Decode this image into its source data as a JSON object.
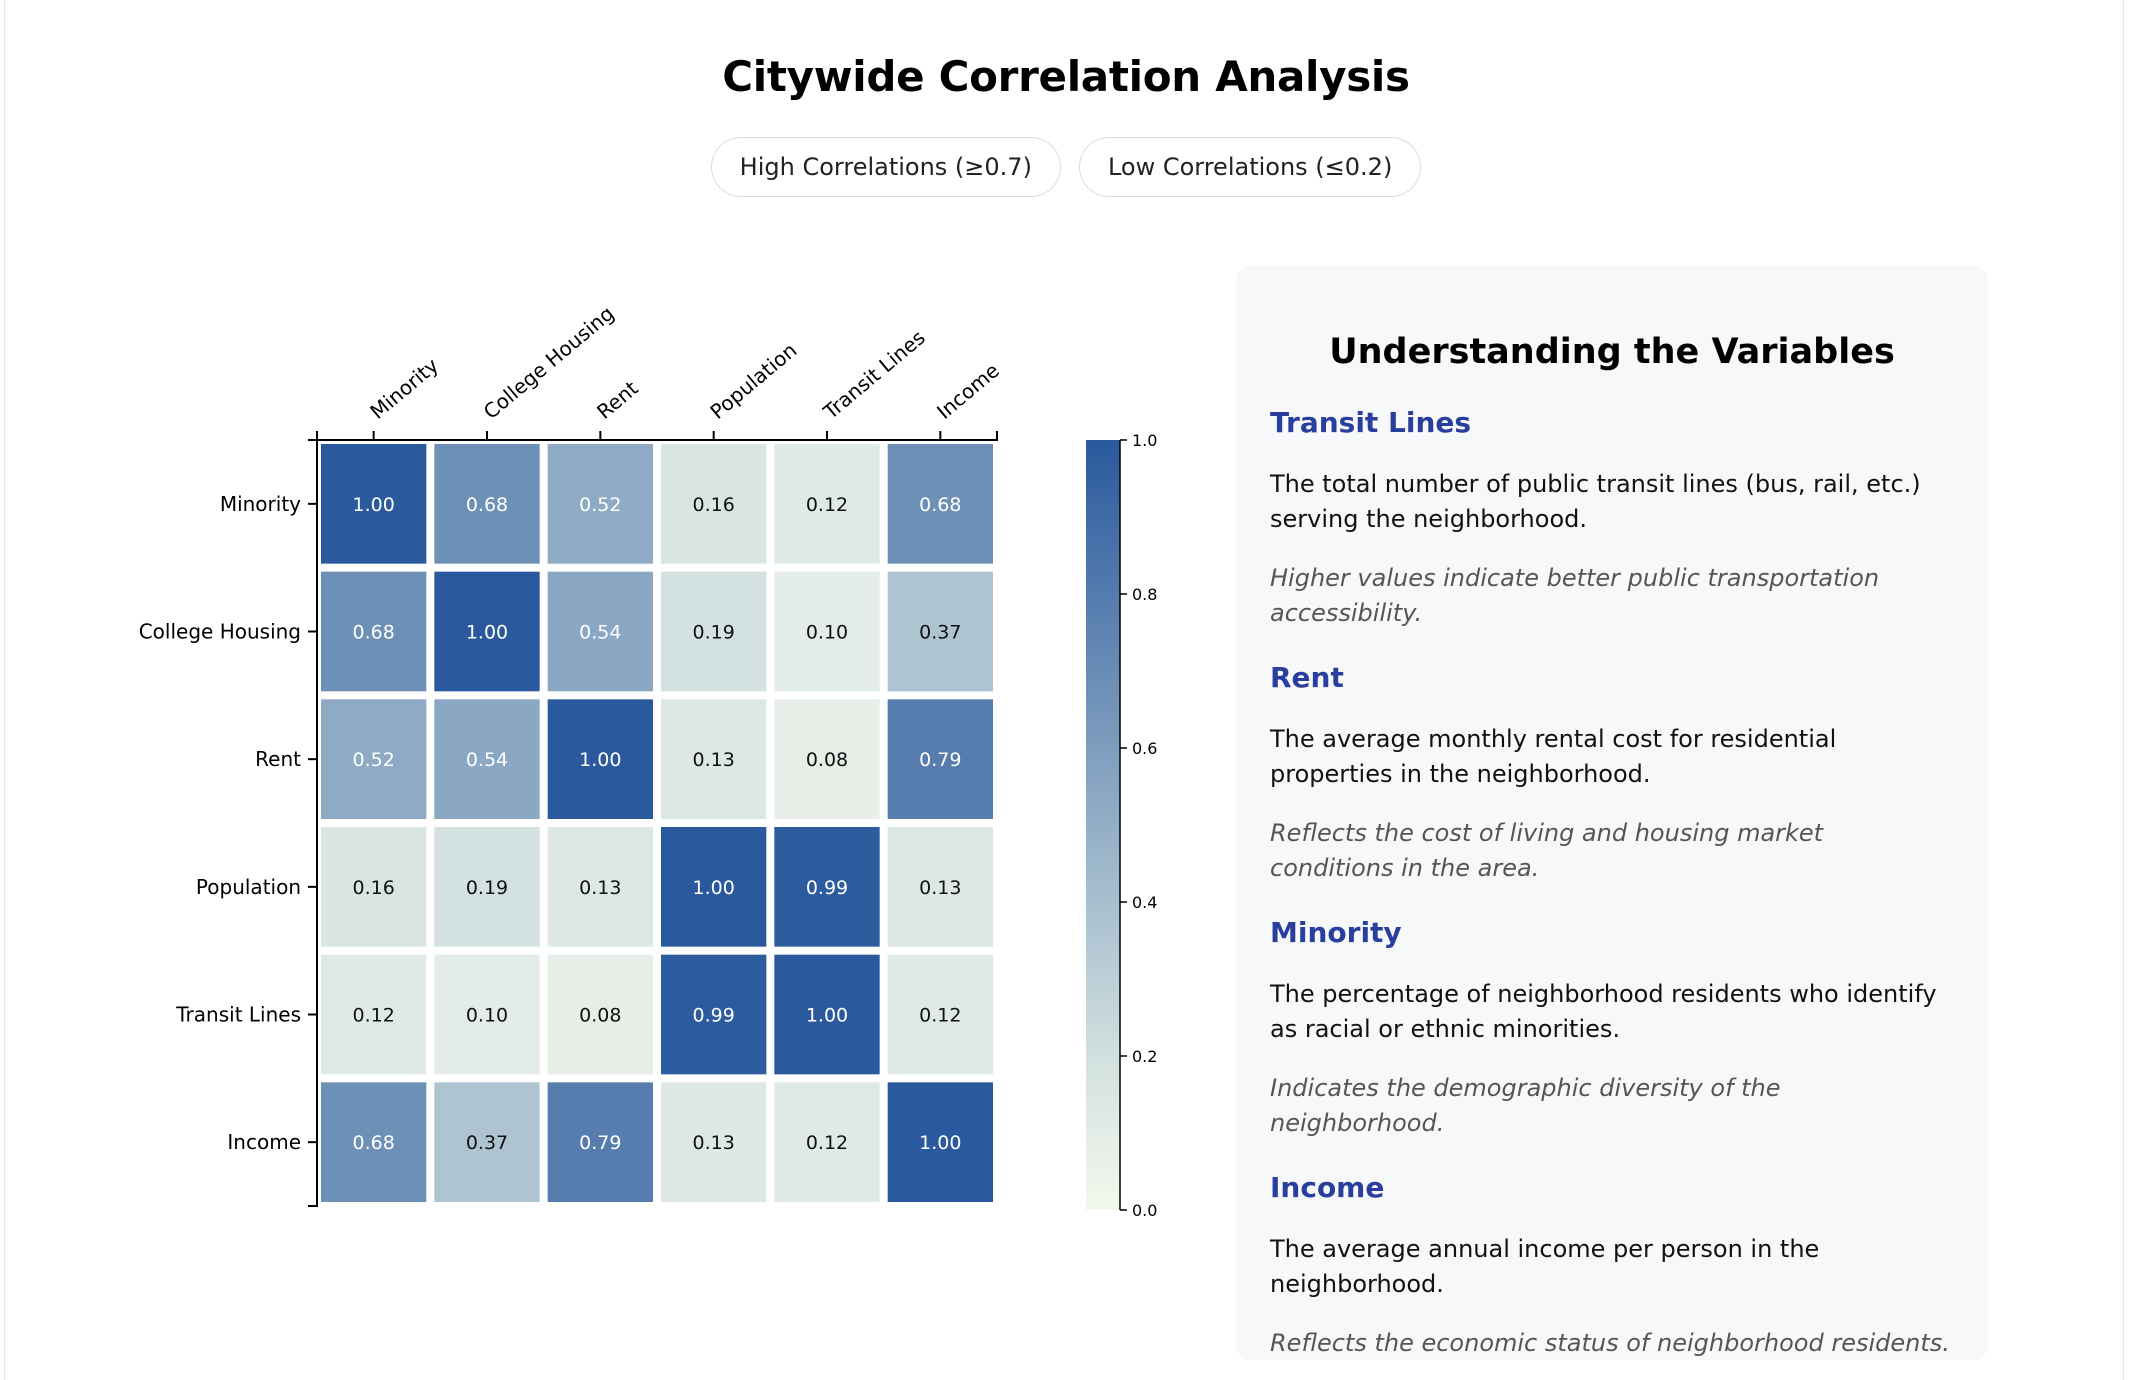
{
  "page": {
    "title": "Citywide Correlation Analysis",
    "filters": [
      {
        "label": "High Correlations (≥0.7)"
      },
      {
        "label": "Low Correlations (≤0.2)"
      }
    ]
  },
  "chart_data": {
    "type": "heatmap",
    "title": "",
    "xlabel": "",
    "ylabel": "",
    "columns": [
      "Minority",
      "College Housing",
      "Rent",
      "Population",
      "Transit Lines",
      "Income"
    ],
    "rows": [
      "Minority",
      "College Housing",
      "Rent",
      "Population",
      "Transit Lines",
      "Income"
    ],
    "values": [
      [
        1.0,
        0.68,
        0.52,
        0.16,
        0.12,
        0.68
      ],
      [
        0.68,
        1.0,
        0.54,
        0.19,
        0.1,
        0.37
      ],
      [
        0.52,
        0.54,
        1.0,
        0.13,
        0.08,
        0.79
      ],
      [
        0.16,
        0.19,
        0.13,
        1.0,
        0.99,
        0.13
      ],
      [
        0.12,
        0.1,
        0.08,
        0.99,
        1.0,
        0.12
      ],
      [
        0.68,
        0.37,
        0.79,
        0.13,
        0.12,
        1.0
      ]
    ],
    "value_range": [
      0.0,
      1.0
    ],
    "colorbar_ticks": [
      "0.0",
      "0.2",
      "0.4",
      "0.6",
      "0.8",
      "1.0"
    ],
    "color_low": "#f4f8ec",
    "color_mid": "#d1e0df",
    "color_high": "#2a5a9d",
    "x_axis_position": "top",
    "legend_position": "right"
  },
  "panel": {
    "title": "Understanding the Variables",
    "variables": [
      {
        "name": "Transit Lines",
        "description": "The total number of public transit lines (bus, rail, etc.) serving the neighborhood.",
        "note": "Higher values indicate better public transportation accessibility."
      },
      {
        "name": "Rent",
        "description": "The average monthly rental cost for residential properties in the neighborhood.",
        "note": "Reflects the cost of living and housing market conditions in the area."
      },
      {
        "name": "Minority",
        "description": "The percentage of neighborhood residents who identify as racial or ethnic minorities.",
        "note": "Indicates the demographic diversity of the neighborhood."
      },
      {
        "name": "Income",
        "description": "The average annual income per person in the neighborhood.",
        "note": "Reflects the economic status of neighborhood residents."
      }
    ]
  }
}
